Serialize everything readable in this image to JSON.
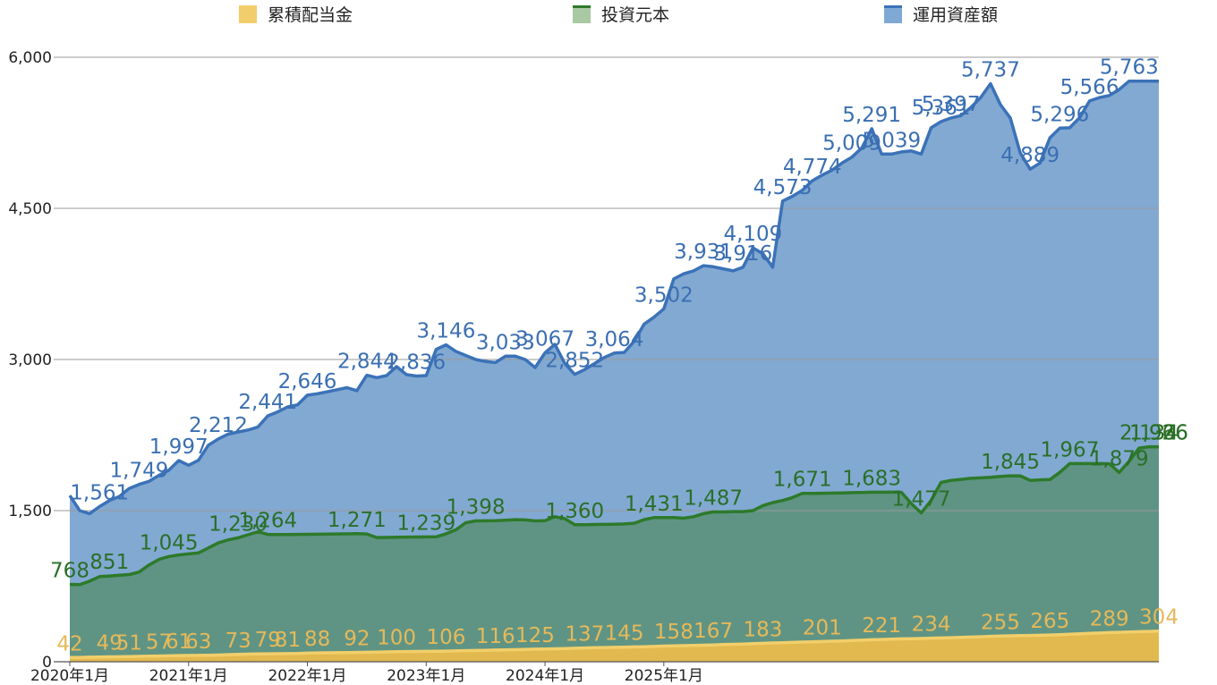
{
  "chart_data": {
    "type": "area",
    "title": "",
    "xlabel": "",
    "ylabel": "",
    "ylim": [
      0,
      6000
    ],
    "yticks": [
      "0",
      "1,500",
      "3,000",
      "4,500",
      "6,000"
    ],
    "xticks": [
      "2020年1月",
      "2021年1月",
      "2022年1月",
      "2023年1月",
      "2024年1月",
      "2025年1月"
    ],
    "grid": true,
    "legend_position": "top",
    "colors": {
      "dividend_fill": "#e2b94f",
      "dividend_line": "#f2cf6a",
      "dividend_label": "#e6b959",
      "principal_fill": "#5f9484",
      "principal_line": "#2d7a2a",
      "principal_label": "#2a6f27",
      "assets_fill": "#82a9d2",
      "assets_line": "#3b72b8",
      "assets_label": "#3b6fb2"
    },
    "series": [
      {
        "name": "累積配当金",
        "values": [
          42,
          43,
          45,
          47,
          49,
          50,
          51,
          53,
          55,
          57,
          59,
          61,
          62,
          63,
          65,
          67,
          70,
          73,
          75,
          77,
          79,
          80,
          81,
          82,
          85,
          88,
          89,
          90,
          91,
          92,
          94,
          96,
          98,
          100,
          101,
          102,
          103,
          104,
          106,
          108,
          110,
          112,
          114,
          116,
          118,
          120,
          122,
          125,
          127,
          129,
          131,
          134,
          137,
          139,
          141,
          143,
          145,
          147,
          149,
          152,
          155,
          158,
          160,
          162,
          164,
          167,
          170,
          173,
          176,
          179,
          183,
          186,
          189,
          192,
          195,
          198,
          201,
          204,
          207,
          210,
          214,
          218,
          221,
          224,
          227,
          229,
          231,
          234,
          236,
          239,
          242,
          245,
          248,
          252,
          255,
          257,
          259,
          261,
          263,
          265,
          269,
          273,
          277,
          281,
          285,
          289,
          292,
          295,
          298,
          301,
          304
        ],
        "labels": [
          "42",
          "49",
          "51",
          "57",
          "61",
          "63",
          "73",
          "79",
          "81",
          "88",
          "92",
          "100",
          "106",
          "116",
          "125",
          "137",
          "145",
          "158",
          "167",
          "183",
          "201",
          "221",
          "234",
          "255",
          "265",
          "289",
          "304"
        ]
      },
      {
        "name": "投資元本",
        "values": [
          768,
          765,
          800,
          845,
          851,
          858,
          865,
          890,
          960,
          1015,
          1045,
          1060,
          1070,
          1080,
          1130,
          1180,
          1210,
          1230,
          1260,
          1290,
          1264,
          1262,
          1263,
          1264,
          1265,
          1266,
          1267,
          1268,
          1269,
          1271,
          1268,
          1233,
          1234,
          1236,
          1237,
          1238,
          1239,
          1240,
          1270,
          1310,
          1380,
          1398,
          1399,
          1400,
          1405,
          1410,
          1408,
          1398,
          1401,
          1440,
          1420,
          1360,
          1361,
          1362,
          1363,
          1365,
          1368,
          1375,
          1410,
          1431,
          1431,
          1432,
          1425,
          1440,
          1470,
          1487,
          1487,
          1490,
          1490,
          1500,
          1550,
          1580,
          1600,
          1630,
          1671,
          1671,
          1672,
          1674,
          1676,
          1678,
          1680,
          1683,
          1683,
          1684,
          1682,
          1570,
          1477,
          1600,
          1780,
          1800,
          1810,
          1820,
          1825,
          1830,
          1840,
          1845,
          1845,
          1800,
          1805,
          1808,
          1880,
          1967,
          1967,
          1967,
          1967,
          1965,
          1879,
          1990,
          2120,
          2134,
          2134
        ],
        "labels": [
          "768",
          "851",
          "1,045",
          "1,230",
          "1,264",
          "1,271",
          "1,239",
          "1,398",
          "1,360",
          "1,431",
          "1,487",
          "1,671",
          "1,683",
          "1,477",
          "1,845",
          "1,967",
          "1,879",
          "2,134",
          "1,926",
          "1,966"
        ]
      },
      {
        "name": "運用資産額",
        "values": [
          1650,
          1500,
          1470,
          1540,
          1600,
          1640,
          1720,
          1760,
          1790,
          1850,
          1900,
          1997,
          1950,
          2000,
          2150,
          2212,
          2260,
          2280,
          2300,
          2330,
          2441,
          2480,
          2530,
          2550,
          2646,
          2660,
          2680,
          2700,
          2720,
          2690,
          2844,
          2820,
          2840,
          2930,
          2850,
          2836,
          2840,
          3100,
          3146,
          3080,
          3040,
          3000,
          2980,
          2970,
          3033,
          3033,
          3000,
          2920,
          3067,
          3150,
          2960,
          2852,
          2900,
          2960,
          3020,
          3064,
          3070,
          3180,
          3350,
          3420,
          3502,
          3800,
          3850,
          3880,
          3931,
          3920,
          3900,
          3880,
          3916,
          4109,
          4050,
          3916,
          4573,
          4620,
          4680,
          4774,
          4830,
          4880,
          4950,
          5009,
          5100,
          5291,
          5040,
          5039,
          5060,
          5070,
          5039,
          5300,
          5361,
          5397,
          5420,
          5500,
          5600,
          5737,
          5530,
          5397,
          5050,
          4889,
          4950,
          5200,
          5296,
          5300,
          5400,
          5566,
          5600,
          5620,
          5680,
          5763,
          5763,
          5763,
          5763
        ],
        "labels": [
          "1,561",
          "1,749",
          "1,997",
          "2,212",
          "2,441",
          "2,646",
          "2,844",
          "2,836",
          "3,146",
          "3,033",
          "3,067",
          "2,852",
          "3,064",
          "3,502",
          "3,931",
          "3,916",
          "4,109",
          "4,573",
          "4,774",
          "5,009",
          "5,291",
          "5,039",
          "5,361",
          "5,397",
          "5,737",
          "4,889",
          "5,296",
          "5,566",
          "5,763"
        ]
      }
    ]
  }
}
